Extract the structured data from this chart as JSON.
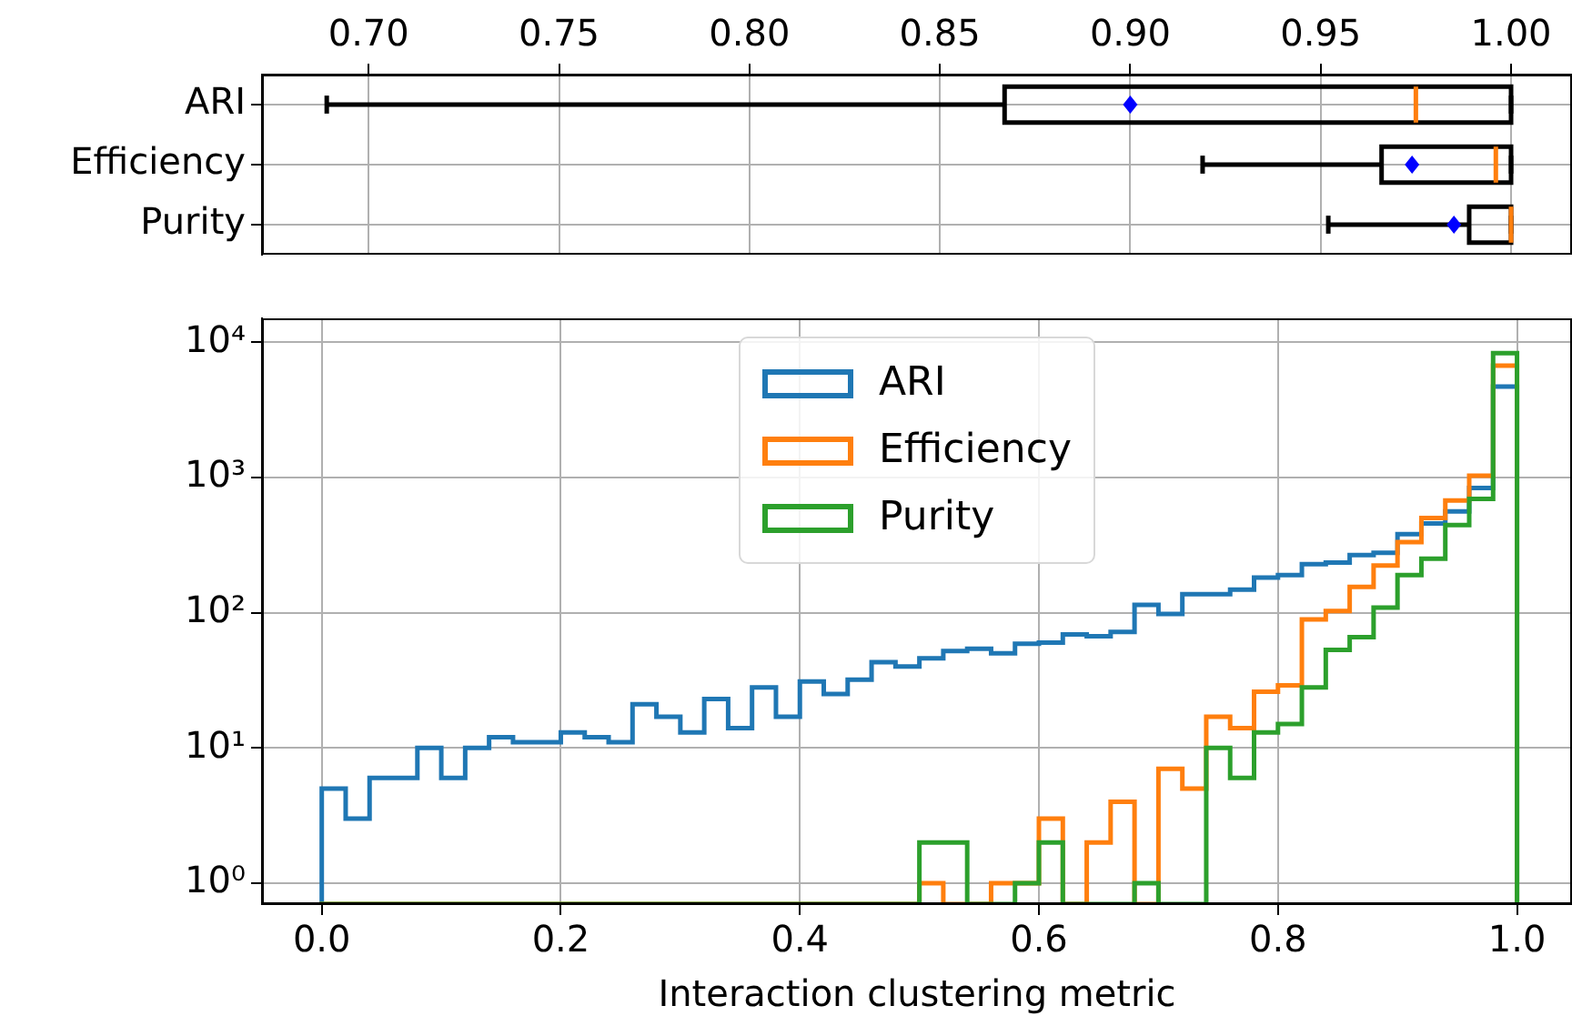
{
  "chart_data": [
    {
      "type": "box",
      "orientation": "horizontal",
      "categories": [
        "ARI",
        "Efficiency",
        "Purity"
      ],
      "boxes": [
        {
          "low": 0.689,
          "q1": 0.867,
          "median": 0.975,
          "q3": 1.0,
          "high": 1.0,
          "mean": 0.9
        },
        {
          "low": 0.919,
          "q1": 0.966,
          "median": 0.996,
          "q3": 1.0,
          "high": 1.0,
          "mean": 0.974
        },
        {
          "low": 0.952,
          "q1": 0.989,
          "median": 1.0,
          "q3": 1.0,
          "high": 1.0,
          "mean": 0.985
        }
      ],
      "xlim": [
        0.672,
        1.016
      ],
      "xticks": [
        {
          "value": 0.7,
          "label": "0.70"
        },
        0.75,
        {
          "value": 0.8,
          "label": "0.80"
        },
        0.85,
        {
          "value": 0.9,
          "label": "0.90"
        },
        0.95,
        {
          "value": 1.0,
          "label": "1.00"
        }
      ],
      "grid": true
    },
    {
      "type": "histogram",
      "xlabel": "Interaction clustering metric",
      "bins": [
        0,
        0.02,
        0.04,
        0.06,
        0.08,
        0.1,
        0.12,
        0.14,
        0.16,
        0.18,
        0.2,
        0.22,
        0.24,
        0.26,
        0.28,
        0.3,
        0.32,
        0.34,
        0.36,
        0.38,
        0.4,
        0.42,
        0.44,
        0.46,
        0.48,
        0.5,
        0.52,
        0.54,
        0.56,
        0.58,
        0.6,
        0.62,
        0.64,
        0.66,
        0.68,
        0.7,
        0.72,
        0.74,
        0.76,
        0.78,
        0.8,
        0.82,
        0.84,
        0.86,
        0.88,
        0.9,
        0.92,
        0.94,
        0.96,
        0.98,
        1.0
      ],
      "series": [
        {
          "name": "ARI",
          "color": "#1f77b4",
          "values": [
            5,
            3,
            6,
            6,
            10,
            6,
            10,
            12,
            11,
            11,
            13,
            12,
            11,
            21,
            17,
            13,
            23,
            14,
            28,
            17,
            31,
            25,
            32,
            43,
            40,
            46,
            52,
            54,
            50,
            59,
            60,
            69,
            67,
            72,
            114,
            98,
            137,
            137,
            148,
            182,
            190,
            228,
            235,
            267,
            277,
            380,
            457,
            560,
            835,
            4700
          ]
        },
        {
          "name": "Efficiency",
          "color": "#ff7f0e",
          "values": [
            null,
            null,
            null,
            null,
            null,
            null,
            null,
            null,
            null,
            null,
            null,
            null,
            null,
            null,
            null,
            null,
            null,
            null,
            null,
            null,
            null,
            null,
            null,
            null,
            null,
            1,
            null,
            null,
            1,
            1,
            3,
            null,
            2,
            4,
            null,
            7,
            5,
            17,
            14,
            26,
            29,
            89,
            103,
            155,
            223,
            333,
            502,
            676,
            1030,
            6700
          ]
        },
        {
          "name": "Purity",
          "color": "#2ca02c",
          "values": [
            null,
            null,
            null,
            null,
            null,
            null,
            null,
            null,
            null,
            null,
            null,
            null,
            null,
            null,
            null,
            null,
            null,
            null,
            null,
            null,
            null,
            null,
            null,
            null,
            null,
            2,
            2,
            null,
            null,
            1,
            2,
            null,
            null,
            null,
            1,
            null,
            null,
            10,
            6,
            13,
            15,
            28,
            53,
            66,
            109,
            190,
            251,
            445,
            695,
            8300
          ]
        }
      ],
      "log": "y",
      "xlim": [
        -0.05,
        1.046
      ],
      "xticks": [
        {
          "value": 0,
          "label": "0.0"
        },
        0.2,
        0.4,
        0.6,
        0.8,
        {
          "value": 1.0,
          "label": "1.0"
        }
      ],
      "ylim": [
        0.7,
        15000
      ],
      "yticks": [
        {
          "value": 1,
          "label": "10⁰"
        },
        {
          "value": 10,
          "label": "10¹"
        },
        {
          "value": 100,
          "label": "10²"
        },
        {
          "value": 1000,
          "label": "10³"
        },
        {
          "value": 10000,
          "label": "10⁴"
        }
      ],
      "grid": true,
      "legend": "top"
    }
  ]
}
